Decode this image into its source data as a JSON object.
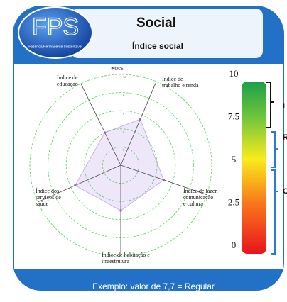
{
  "header": {
    "logo": "FPS",
    "logo_subtitle": "Fazenda Permanente Sustentável",
    "title": "Social",
    "subtitle": "Índice social"
  },
  "chart_data": {
    "type": "radar",
    "title": "INDICE",
    "categories": [
      [
        "Índice de",
        "educação"
      ],
      [
        "Índice de",
        "trabalho e renda"
      ],
      [
        "Índice de lazer,",
        "comunicação",
        "e cultura"
      ],
      [
        "Índice de habitação e",
        "ifraestrutura"
      ],
      [
        "Índice dos",
        "serviços de",
        "saúde"
      ]
    ],
    "values": [
      4,
      5.5,
      5,
      5,
      5.5
    ],
    "color": "#8a5cd6",
    "rlim": [
      0,
      10
    ],
    "rticks": [
      2,
      4,
      6,
      8,
      10
    ],
    "grid": true
  },
  "scale": {
    "lim": [
      0,
      10
    ],
    "ticks": [
      0,
      2.5,
      5,
      7.5,
      10
    ],
    "labels": [
      "I",
      "R",
      "O"
    ]
  },
  "footer": "Exemplo: valor de 7,7 = Regular"
}
